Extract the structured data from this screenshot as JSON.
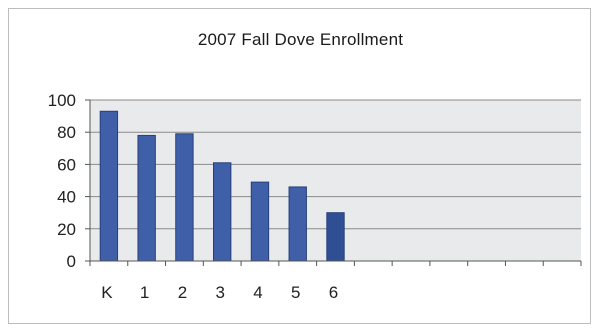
{
  "chart_data": {
    "type": "bar",
    "title": "2007 Fall Dove Enrollment",
    "xlabel": "",
    "ylabel": "",
    "categories": [
      "K",
      "1",
      "2",
      "3",
      "4",
      "5",
      "6"
    ],
    "values": [
      93,
      78,
      79,
      61,
      49,
      46,
      30
    ],
    "ylim": [
      0,
      100
    ],
    "yticks": [
      0,
      20,
      40,
      60,
      80,
      100
    ],
    "yticks_labels": [
      "0",
      "20",
      "40",
      "60",
      "80",
      "100"
    ],
    "x_slots": 13,
    "grid": true,
    "legend": "none",
    "colors": {
      "bar": "#3f5fa8",
      "bar_last": "#2f4e94",
      "plot_bg": "#e9eaec",
      "grid": "#8a8a8a",
      "axis": "#555555"
    }
  }
}
